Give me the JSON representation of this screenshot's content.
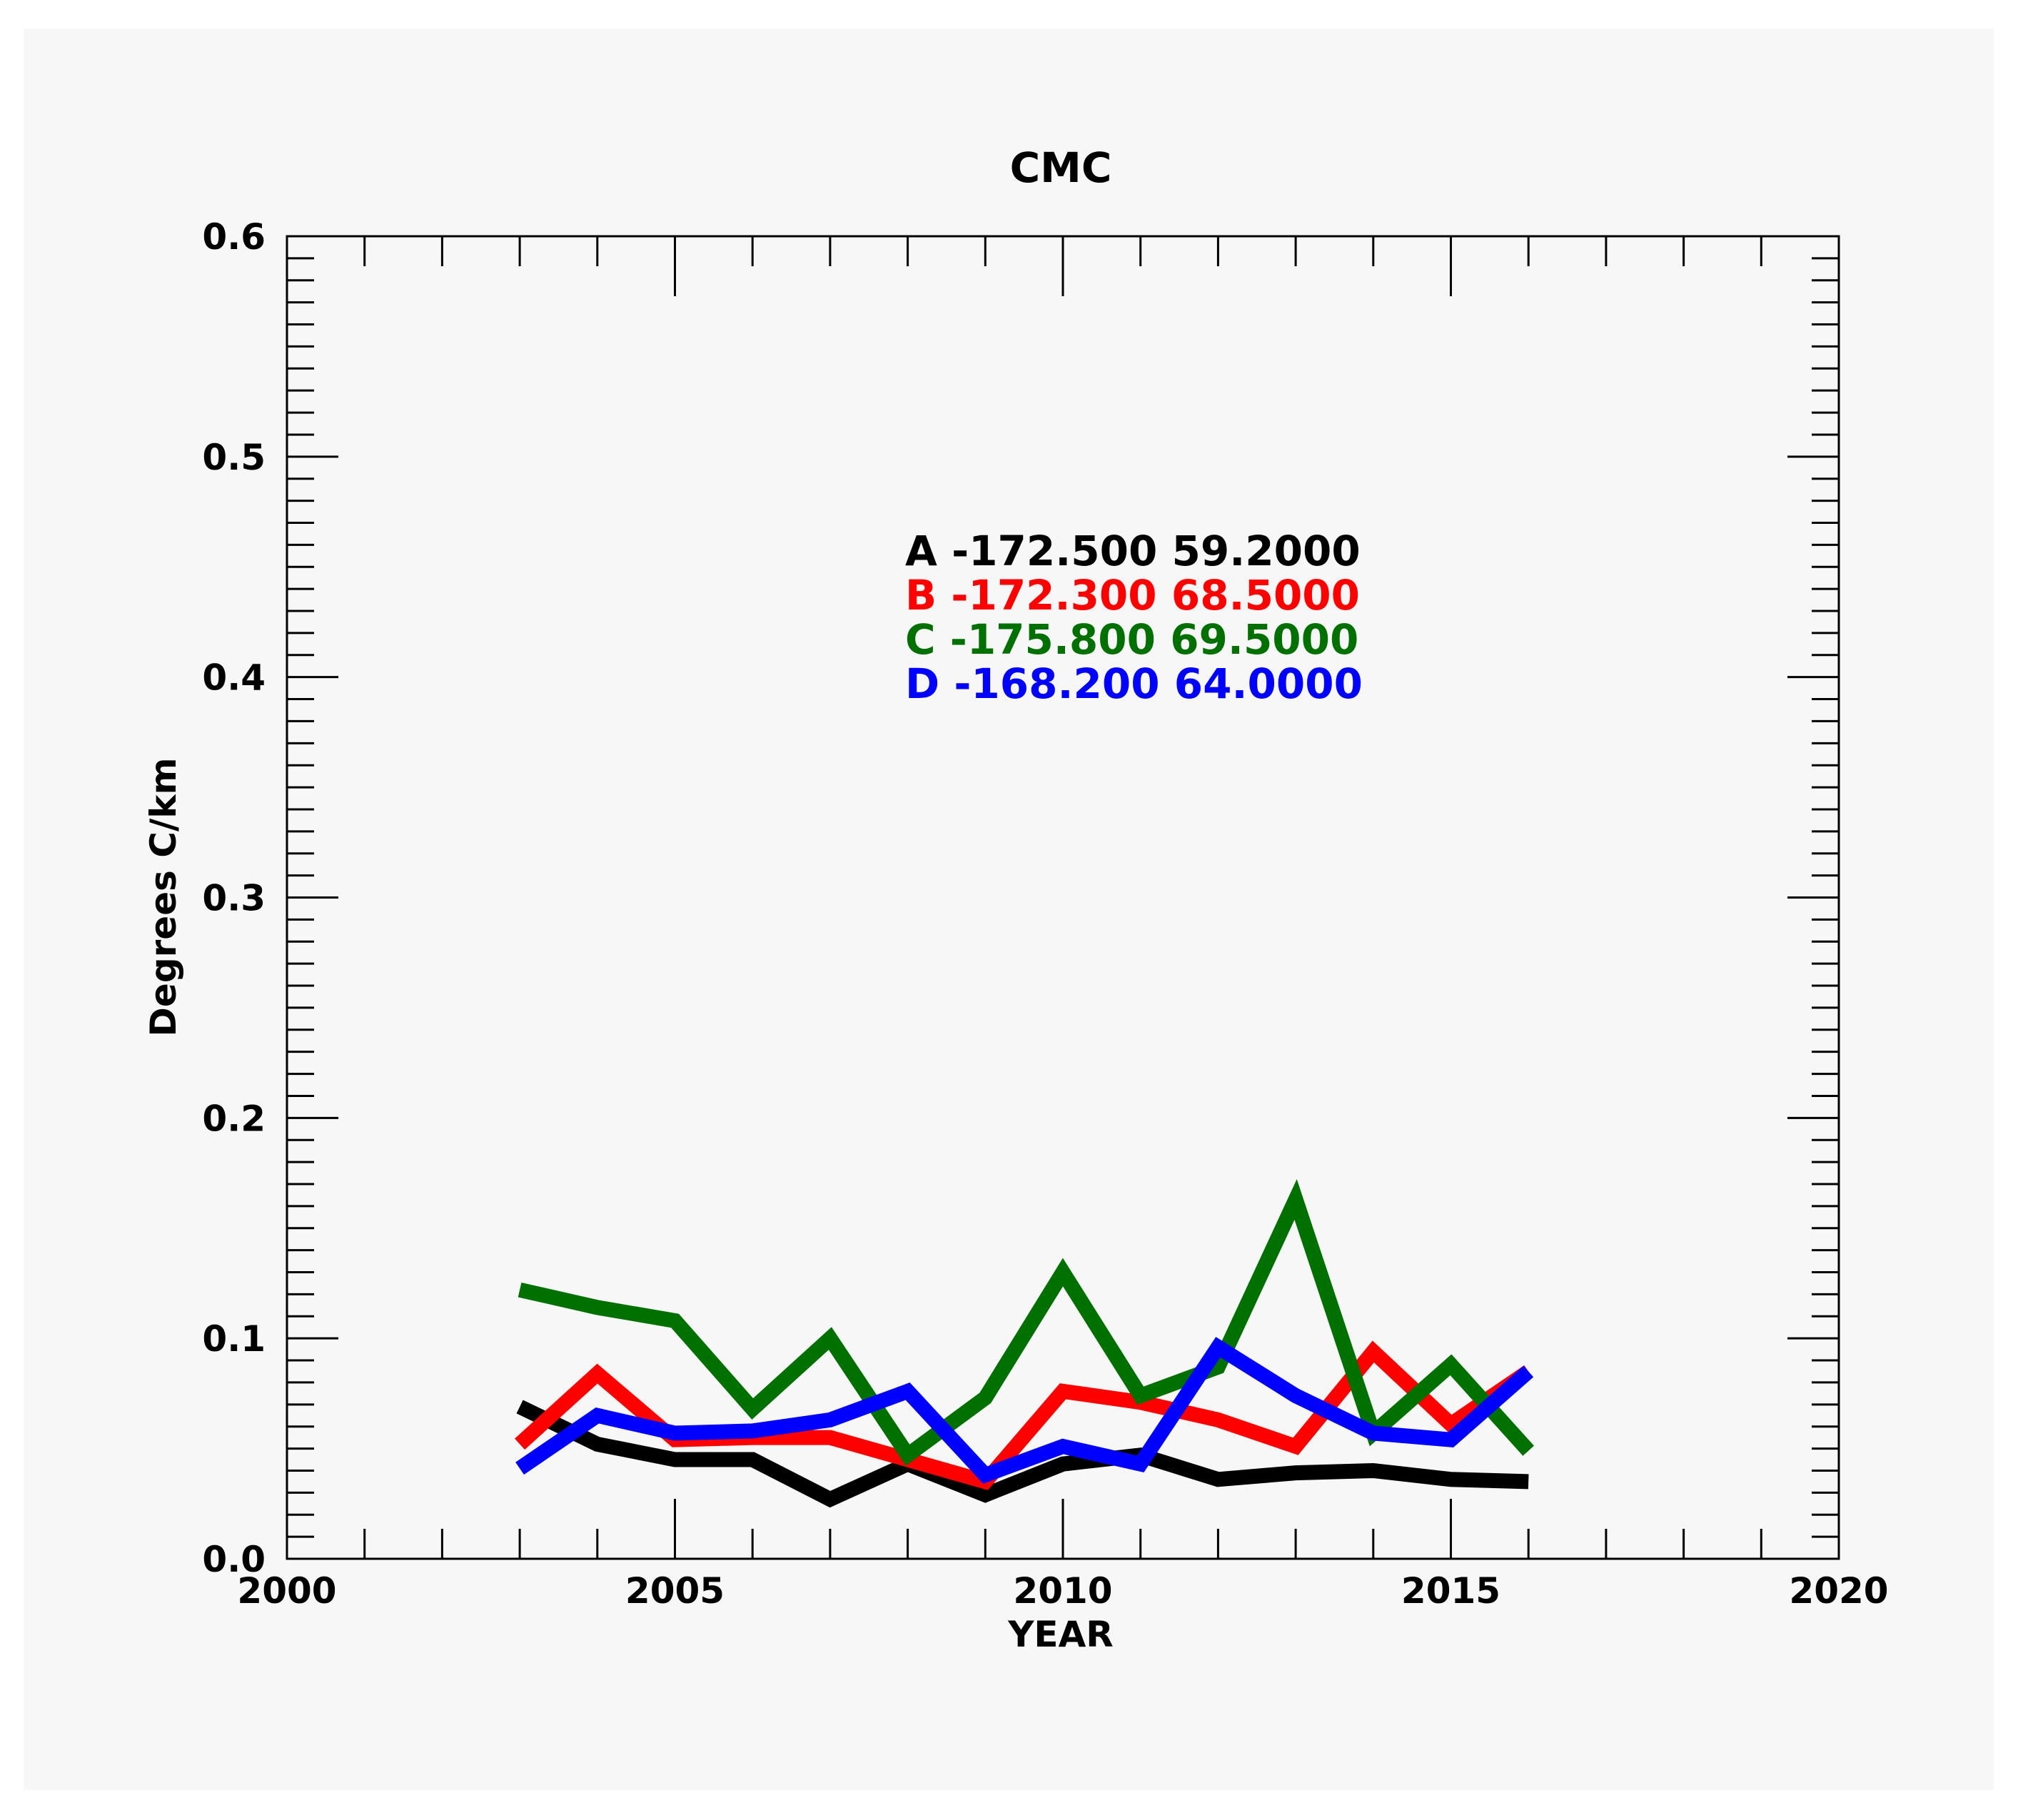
{
  "chart_data": {
    "type": "line",
    "title": "CMC",
    "xlabel": "YEAR",
    "ylabel": "Degrees C/km",
    "xlim": [
      2000,
      2020
    ],
    "ylim": [
      0.0,
      0.6
    ],
    "x_ticks": [
      2000,
      2005,
      2010,
      2015,
      2020
    ],
    "y_ticks": [
      "0.0",
      "0.1",
      "0.2",
      "0.3",
      "0.4",
      "0.5",
      "0.6"
    ],
    "grid": false,
    "legend_position": "top-center",
    "x": [
      2003,
      2004,
      2005,
      2006,
      2007,
      2008,
      2009,
      2010,
      2011,
      2012,
      2013,
      2014,
      2015,
      2016
    ],
    "series": [
      {
        "name": "A",
        "label": "A -172.500 59.2000",
        "color": "#000000",
        "values": [
          0.069,
          0.052,
          0.045,
          0.045,
          0.027,
          0.043,
          0.029,
          0.043,
          0.047,
          0.036,
          0.039,
          0.04,
          0.036,
          0.035
        ]
      },
      {
        "name": "B",
        "label": "B -172.300 68.5000",
        "color": "#ff0000",
        "values": [
          0.052,
          0.084,
          0.054,
          0.055,
          0.055,
          0.045,
          0.035,
          0.076,
          0.071,
          0.063,
          0.051,
          0.094,
          0.061,
          0.085
        ]
      },
      {
        "name": "C",
        "label": "C -175.800 69.5000",
        "color": "#007000",
        "values": [
          0.122,
          0.114,
          0.108,
          0.068,
          0.1,
          0.047,
          0.073,
          0.13,
          0.074,
          0.087,
          0.163,
          0.057,
          0.088,
          0.049
        ]
      },
      {
        "name": "D",
        "label": "D -168.200 64.0000",
        "color": "#0000ff",
        "values": [
          0.041,
          0.065,
          0.057,
          0.058,
          0.063,
          0.076,
          0.038,
          0.051,
          0.043,
          0.096,
          0.074,
          0.057,
          0.054,
          0.085
        ]
      }
    ]
  }
}
